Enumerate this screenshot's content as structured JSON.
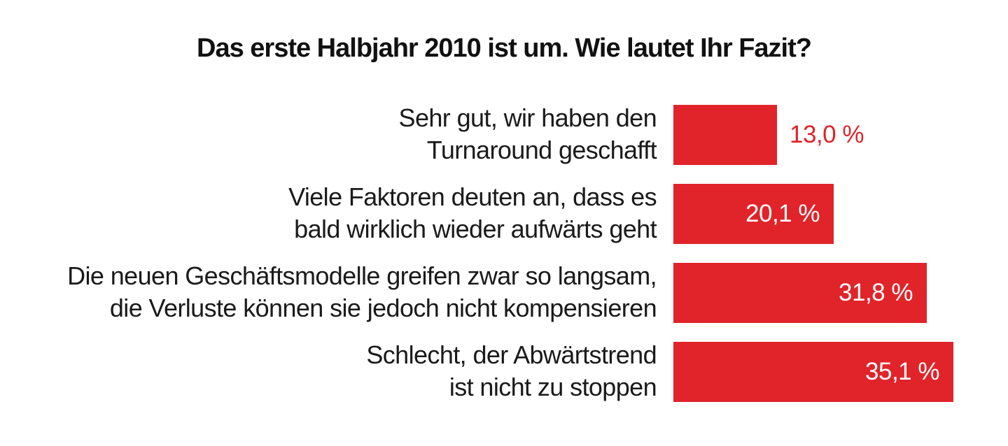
{
  "chart_data": {
    "type": "bar",
    "orientation": "horizontal",
    "title": "Das erste Halbjahr 2010 ist um. Wie lautet Ihr Fazit?",
    "categories": [
      [
        "Sehr gut, wir haben den",
        "Turnaround geschafft"
      ],
      [
        "Viele Faktoren deuten an, dass es",
        "bald wirklich wieder aufwärts geht"
      ],
      [
        "Die neuen Geschäftsmodelle greifen zwar so langsam,",
        "die Verluste können sie jedoch nicht kompensieren"
      ],
      [
        "Schlecht, der Abwärtstrend",
        "ist nicht zu stoppen"
      ]
    ],
    "values": [
      13.0,
      20.1,
      31.8,
      35.1
    ],
    "value_labels": [
      "13,0 %",
      "20,1 %",
      "31,8 %",
      "35,1 %"
    ],
    "unit": "%",
    "xlim": [
      0,
      35.1
    ],
    "bar_color": "#e0242a",
    "outside_label_color": "#e0242a",
    "inside_label_color": "#ffffff",
    "grid": false,
    "legend": "none"
  }
}
